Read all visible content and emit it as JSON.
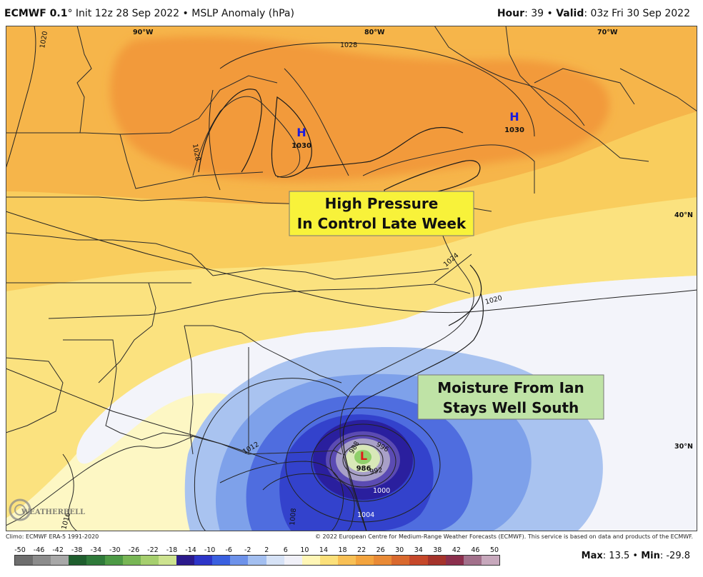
{
  "header": {
    "model": "ECMWF 0.1",
    "degree": "°",
    "init": " Init 12z 28 Sep 2022",
    "sep": " • ",
    "field": "MSLP Anomaly (hPa)",
    "hour_label": "Hour",
    "hour_value": ": 39",
    "valid_label": "Valid",
    "valid_value": ": 03z Fri 30 Sep 2022"
  },
  "map": {
    "annotations": [
      {
        "text_line1": "High Pressure",
        "text_line2": "In Control Late Week",
        "color": "#f8f23a"
      },
      {
        "text_line1": "Moisture From Ian",
        "text_line2": "Stays Well South",
        "color": "#bfe3a6"
      }
    ],
    "pressure_centers": [
      {
        "symbol": "H",
        "value": "1030",
        "color": "#1a1adf"
      },
      {
        "symbol": "H",
        "value": "1030",
        "color": "#1a1adf"
      },
      {
        "symbol": "L",
        "value": "986",
        "color": "#e01b1b"
      }
    ],
    "longitudes": [
      "90°W",
      "80°W",
      "70°W"
    ],
    "latitudes": [
      "40°N",
      "30°N"
    ],
    "isobar_labels": [
      "1020",
      "1028",
      "1028",
      "1020",
      "1024",
      "1012",
      "1016",
      "1008",
      "1004",
      "1000",
      "996",
      "992",
      "988"
    ],
    "logo_text": "WEATHERBELL"
  },
  "footer": {
    "climo": "Climo: ECMWF ERA-5 1991-2020",
    "copyright": "© 2022 European Centre for Medium-Range Weather Forecasts (ECMWF). This service is based on data and products of the ECMWF.",
    "max_label": "Max",
    "max_value": ": 13.5",
    "sep": " • ",
    "min_label": "Min",
    "min_value": ": -29.8"
  },
  "colorbar": {
    "labels": [
      "-50",
      "-46",
      "-42",
      "-38",
      "-34",
      "-30",
      "-26",
      "-22",
      "-18",
      "-14",
      "-10",
      "-6",
      "-2",
      "2",
      "6",
      "10",
      "14",
      "18",
      "22",
      "26",
      "30",
      "34",
      "38",
      "42",
      "46",
      "50"
    ],
    "colors": [
      "#6e6e6e",
      "#8c8c8c",
      "#a8a8a8",
      "#1f5e2e",
      "#2f7a3a",
      "#4d9a45",
      "#78b655",
      "#a6cf6e",
      "#cde38f",
      "#2b1a8c",
      "#2d35c8",
      "#3a60e0",
      "#6d92ea",
      "#a3bff0",
      "#d6e2f6",
      "#f0f0f8",
      "#fff6b6",
      "#fbe07a",
      "#f8c055",
      "#f3a43e",
      "#e98a36",
      "#d9692e",
      "#c6482a",
      "#a5332b",
      "#8b2f4d",
      "#a2708b",
      "#c7a8bc"
    ]
  }
}
